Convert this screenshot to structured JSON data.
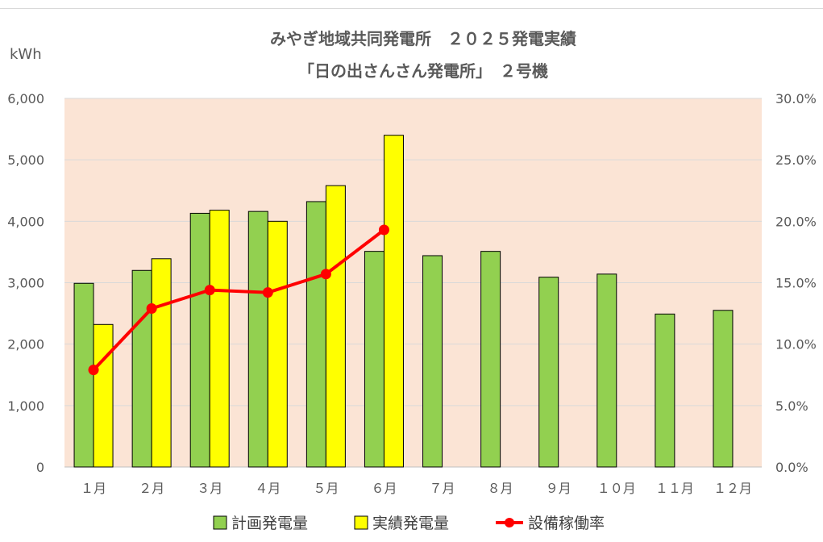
{
  "chart_data": {
    "type": "bar",
    "title": "みやぎ地域共同発電所　２０２５発電実績",
    "subtitle": "「日の出さんさん発電所」　２号機",
    "ylabel": "kWh",
    "categories": [
      "１月",
      "２月",
      "３月",
      "４月",
      "５月",
      "６月",
      "７月",
      "８月",
      "９月",
      "１０月",
      "１１月",
      "１２月"
    ],
    "ylim": [
      0,
      6000
    ],
    "y2lim": [
      0,
      0.3
    ],
    "y_ticks": [
      "0",
      "1,000",
      "2,000",
      "3,000",
      "4,000",
      "5,000",
      "6,000"
    ],
    "y2_ticks": [
      "0.0%",
      "5.0%",
      "10.0%",
      "15.0%",
      "20.0%",
      "25.0%",
      "30.0%"
    ],
    "series": [
      {
        "name": "計画発電量",
        "type": "bar",
        "axis": "left",
        "color": "#92d050",
        "values": [
          2990,
          3200,
          4130,
          4160,
          4320,
          3510,
          3440,
          3510,
          3090,
          3140,
          2490,
          2550
        ]
      },
      {
        "name": "実績発電量",
        "type": "bar",
        "axis": "left",
        "color": "#ffff00",
        "values": [
          2320,
          3390,
          4180,
          4000,
          4580,
          5400,
          null,
          null,
          null,
          null,
          null,
          null
        ]
      },
      {
        "name": "設備稼働率",
        "type": "line",
        "axis": "right",
        "color": "#ff0000",
        "values": [
          0.079,
          0.129,
          0.144,
          0.142,
          0.157,
          0.193,
          null,
          null,
          null,
          null,
          null,
          null
        ]
      }
    ],
    "plot_background": "#fbe4d5",
    "grid": true,
    "legend_position": "bottom"
  }
}
